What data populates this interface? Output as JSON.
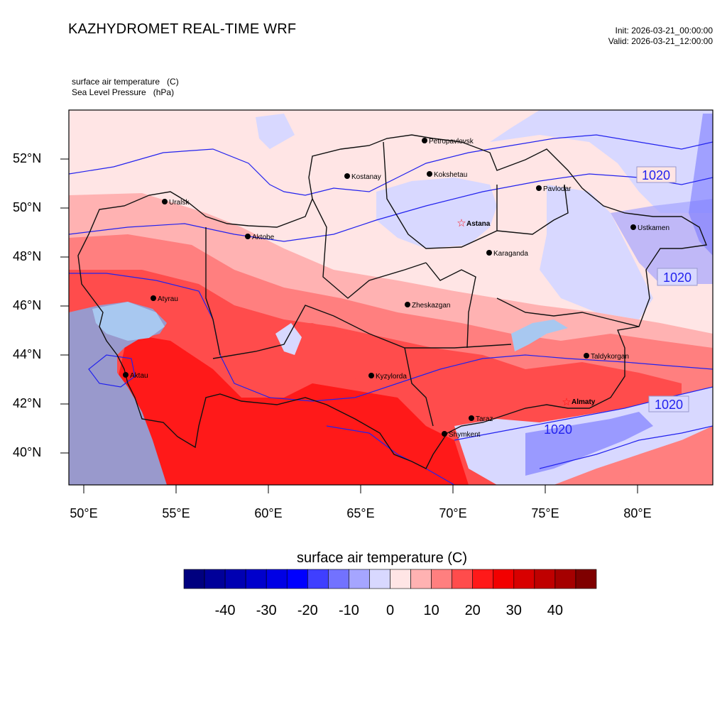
{
  "header": {
    "title": "KAZHYDROMET REAL-TIME WRF",
    "init": "Init: 2026-03-21_00:00:00",
    "valid": "Valid: 2026-03-21_12:00:00"
  },
  "variables": {
    "line1": "surface air temperature   (C)",
    "line2": "Sea Level Pressure   (hPa)"
  },
  "map": {
    "lat_ticks": [
      "52°N",
      "50°N",
      "48°N",
      "46°N",
      "44°N",
      "42°N",
      "40°N"
    ],
    "lon_ticks": [
      "50°E",
      "55°E",
      "60°E",
      "65°E",
      "70°E",
      "75°E",
      "80°E"
    ],
    "cities": [
      {
        "name": "Petropavlovsk",
        "capital": false
      },
      {
        "name": "Kostanay",
        "capital": false
      },
      {
        "name": "Kokshetau",
        "capital": false
      },
      {
        "name": "Pavlodar",
        "capital": false
      },
      {
        "name": "Uralsk",
        "capital": false
      },
      {
        "name": "Astana",
        "capital": true
      },
      {
        "name": "Ustkamen",
        "capital": false
      },
      {
        "name": "Aktobe",
        "capital": false
      },
      {
        "name": "Karaganda",
        "capital": false
      },
      {
        "name": "Atyrau",
        "capital": false
      },
      {
        "name": "Zheskazgan",
        "capital": false
      },
      {
        "name": "Taldykorgan",
        "capital": false
      },
      {
        "name": "Kyzylorda",
        "capital": false
      },
      {
        "name": "Aktau",
        "capital": false
      },
      {
        "name": "Almaty",
        "capital": true
      },
      {
        "name": "Taraz",
        "capital": false
      },
      {
        "name": "Shymkent",
        "capital": false
      }
    ],
    "pressure_labels": [
      "1020",
      "1020",
      "1020",
      "1020"
    ]
  },
  "colorbar": {
    "title": "surface air temperature  (C)",
    "ticks": [
      "-40",
      "-30",
      "-20",
      "-10",
      "0",
      "10",
      "20",
      "30",
      "40"
    ],
    "colors": [
      "#00007f",
      "#000099",
      "#0000b2",
      "#0000cc",
      "#0000e5",
      "#0000ff",
      "#3f3fff",
      "#7272ff",
      "#a5a5ff",
      "#d8d8ff",
      "#ffe5e5",
      "#ffb2b2",
      "#ff7f7f",
      "#ff4c4c",
      "#ff1919",
      "#f20000",
      "#d80000",
      "#bf0000",
      "#a50000",
      "#7f0000"
    ]
  }
}
